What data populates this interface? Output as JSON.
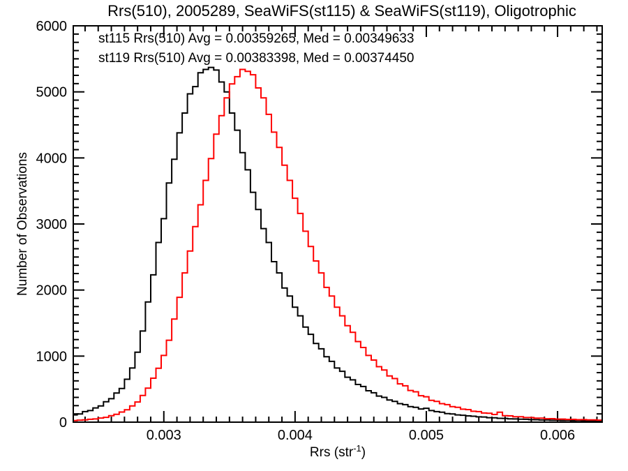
{
  "title": "Rrs(510), 2005289, SeaWiFS(st115) & SeaWiFS(st119), Oligotrophic",
  "colors": {
    "background": "#ffffff",
    "axis": "#000000",
    "st115": "#000000",
    "st119": "#ff0000"
  },
  "legend": [
    {
      "label": "st115 Rrs(510) Avg = 0.00359265, Med = 0.00349633",
      "color": "#000000"
    },
    {
      "label": "st119 Rrs(510) Avg = 0.00383398, Med = 0.00374450",
      "color": "#ff0000"
    }
  ],
  "axis_labels": {
    "y": "Number of Observations",
    "x_full": "Rrs (str⁻¹)",
    "x_prefix": "Rrs (str",
    "x_sup": "-1",
    "x_suffix": ")"
  },
  "chart_data": {
    "type": "line",
    "subtype": "step-histogram",
    "title": "Rrs(510), 2005289, SeaWiFS(st115) & SeaWiFS(st119), Oligotrophic",
    "xlabel": "Rrs (str⁻¹)",
    "ylabel": "Number of Observations",
    "xlim": [
      0.00231,
      0.00634
    ],
    "ylim": [
      0,
      6000
    ],
    "grid": false,
    "legend_position": "top-left-inside",
    "x_major_ticks": [
      0.003,
      0.004,
      0.005,
      0.006
    ],
    "x_tick_labels": [
      "0.003",
      "0.004",
      "0.005",
      "0.006"
    ],
    "x_minor_interval": 0.0001,
    "y_major_ticks": [
      0,
      1000,
      2000,
      3000,
      4000,
      5000,
      6000
    ],
    "y_tick_labels": [
      "0",
      "1000",
      "2000",
      "3000",
      "4000",
      "5000",
      "6000"
    ],
    "y_minor_interval": 125,
    "bin_start": 0.0023,
    "bin_width": 4e-05,
    "series": [
      {
        "name": "st115",
        "instrument": "SeaWiFS",
        "color": "#000000",
        "avg": 0.00359265,
        "med": 0.00349633,
        "peak_x": 0.00336,
        "peak_y": 5370,
        "values": [
          110,
          125,
          160,
          175,
          215,
          245,
          310,
          355,
          440,
          510,
          650,
          820,
          1060,
          1380,
          1820,
          2230,
          2720,
          3080,
          3620,
          3980,
          4380,
          4680,
          4970,
          5080,
          5290,
          5340,
          5370,
          5330,
          5150,
          5000,
          4680,
          4420,
          4080,
          3820,
          3480,
          3220,
          2930,
          2720,
          2430,
          2260,
          2030,
          1910,
          1740,
          1610,
          1440,
          1330,
          1190,
          1110,
          990,
          920,
          820,
          770,
          680,
          640,
          570,
          540,
          475,
          445,
          395,
          375,
          335,
          315,
          280,
          265,
          235,
          225,
          200,
          210,
          175,
          160,
          150,
          130,
          125,
          110,
          105,
          95,
          90,
          80,
          78,
          68,
          66,
          58,
          57,
          50,
          49,
          44,
          43,
          38,
          37,
          33,
          33,
          29,
          29,
          25,
          26,
          22,
          23,
          20,
          21,
          18,
          17,
          16
        ]
      },
      {
        "name": "st119",
        "instrument": "SeaWiFS",
        "color": "#ff0000",
        "avg": 0.00383398,
        "med": 0.0037445,
        "peak_x": 0.00362,
        "peak_y": 5340,
        "values": [
          24,
          31,
          34,
          43,
          49,
          62,
          73,
          97,
          118,
          153,
          188,
          245,
          305,
          405,
          515,
          665,
          815,
          1010,
          1240,
          1560,
          1890,
          2260,
          2590,
          2960,
          3290,
          3660,
          3990,
          4360,
          4640,
          4910,
          5120,
          5230,
          5340,
          5310,
          5260,
          5060,
          4910,
          4660,
          4390,
          4160,
          3890,
          3660,
          3390,
          3160,
          2890,
          2660,
          2440,
          2260,
          2040,
          1910,
          1740,
          1610,
          1460,
          1360,
          1220,
          1130,
          1010,
          940,
          840,
          790,
          700,
          660,
          580,
          550,
          480,
          460,
          400,
          385,
          330,
          315,
          280,
          265,
          235,
          225,
          196,
          190,
          165,
          160,
          138,
          134,
          116,
          150,
          97,
          95,
          82,
          81,
          70,
          70,
          60,
          61,
          52,
          53,
          46,
          47,
          41,
          42,
          37,
          38,
          34,
          35,
          31,
          32
        ]
      }
    ]
  },
  "layout_note": "histogram of number of observations vs Rrs(510)"
}
